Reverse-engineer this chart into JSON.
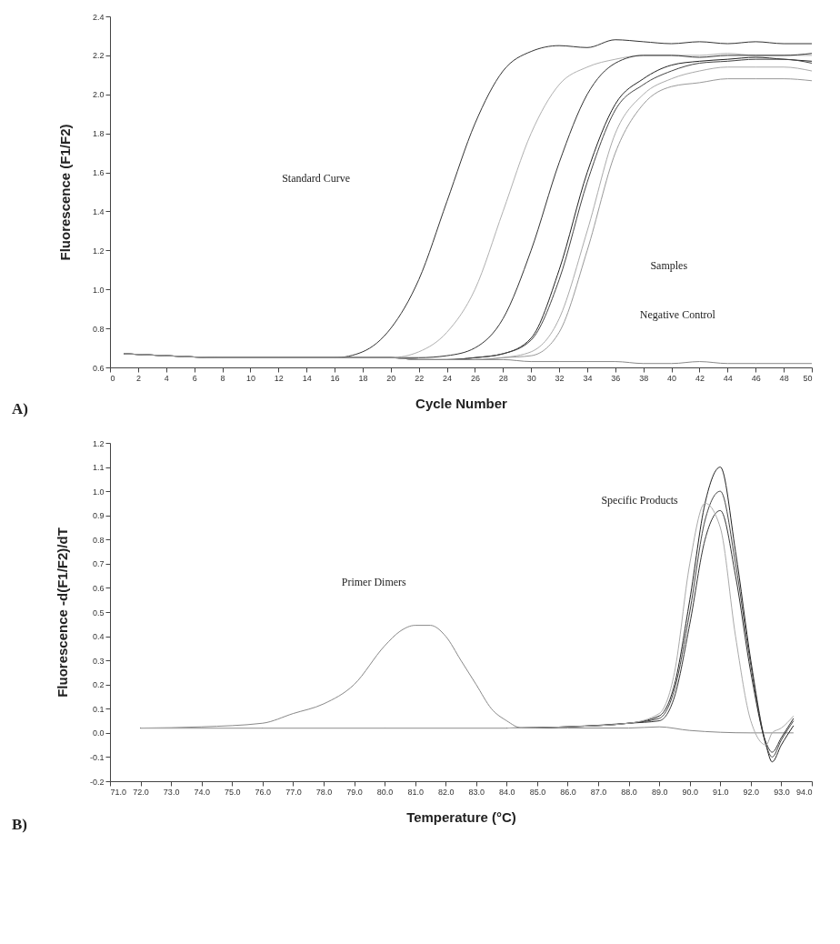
{
  "chart_data": [
    {
      "type": "line",
      "xlabel": "Cycle Number",
      "ylabel": "Fluorescence (F1/F2)",
      "xlim": [
        0,
        50
      ],
      "ylim": [
        0.6,
        2.4
      ],
      "xticks": [
        0,
        2,
        4,
        6,
        8,
        10,
        12,
        14,
        16,
        18,
        20,
        22,
        24,
        26,
        28,
        30,
        32,
        34,
        36,
        38,
        40,
        42,
        44,
        46,
        48,
        50
      ],
      "yticks": [
        0.6,
        0.8,
        {
          "value": 1,
          "label": "1.0"
        },
        1.2,
        1.4,
        1.6,
        1.8,
        {
          "value": 2,
          "label": "2.0"
        },
        2.2,
        2.4
      ],
      "x": [
        1,
        4,
        8,
        12,
        16,
        18,
        20,
        22,
        24,
        26,
        28,
        30,
        32,
        34,
        36,
        38,
        40,
        42,
        44,
        46,
        48,
        50
      ],
      "series": [
        {
          "color": "#333333",
          "values": [
            0.67,
            0.66,
            0.65,
            0.65,
            0.65,
            0.68,
            0.8,
            1.05,
            1.45,
            1.85,
            2.12,
            2.22,
            2.25,
            2.24,
            2.28,
            2.27,
            2.26,
            2.27,
            2.26,
            2.27,
            2.26,
            2.26
          ]
        },
        {
          "color": "#b0b0b0",
          "values": [
            0.67,
            0.66,
            0.65,
            0.65,
            0.65,
            0.65,
            0.65,
            0.68,
            0.78,
            1.0,
            1.4,
            1.8,
            2.05,
            2.14,
            2.18,
            2.2,
            2.2,
            2.2,
            2.21,
            2.2,
            2.2,
            2.2
          ]
        },
        {
          "color": "#333333",
          "values": [
            0.67,
            0.66,
            0.65,
            0.65,
            0.65,
            0.65,
            0.65,
            0.65,
            0.66,
            0.7,
            0.85,
            1.2,
            1.65,
            2.0,
            2.16,
            2.2,
            2.2,
            2.19,
            2.2,
            2.2,
            2.2,
            2.21
          ]
        },
        {
          "color": "#222222",
          "values": [
            0.67,
            0.66,
            0.65,
            0.65,
            0.65,
            0.65,
            0.65,
            0.64,
            0.64,
            0.65,
            0.67,
            0.75,
            1.1,
            1.6,
            1.95,
            2.08,
            2.15,
            2.17,
            2.18,
            2.19,
            2.18,
            2.17
          ]
        },
        {
          "color": "#444444",
          "values": [
            0.67,
            0.66,
            0.65,
            0.65,
            0.65,
            0.65,
            0.65,
            0.64,
            0.64,
            0.65,
            0.67,
            0.74,
            1.05,
            1.55,
            1.92,
            2.05,
            2.12,
            2.16,
            2.17,
            2.18,
            2.18,
            2.16
          ]
        },
        {
          "color": "#aaaaaa",
          "values": [
            0.67,
            0.66,
            0.65,
            0.65,
            0.65,
            0.65,
            0.65,
            0.64,
            0.64,
            0.64,
            0.65,
            0.68,
            0.85,
            1.3,
            1.8,
            2.0,
            2.08,
            2.12,
            2.14,
            2.14,
            2.14,
            2.12
          ]
        },
        {
          "color": "#999999",
          "values": [
            0.67,
            0.66,
            0.65,
            0.65,
            0.65,
            0.65,
            0.65,
            0.64,
            0.64,
            0.64,
            0.65,
            0.66,
            0.78,
            1.2,
            1.7,
            1.95,
            2.04,
            2.06,
            2.08,
            2.08,
            2.08,
            2.07
          ]
        },
        {
          "color": "#888888",
          "values": [
            0.67,
            0.66,
            0.65,
            0.65,
            0.65,
            0.65,
            0.65,
            0.64,
            0.64,
            0.64,
            0.64,
            0.63,
            0.63,
            0.63,
            0.63,
            0.62,
            0.62,
            0.63,
            0.62,
            0.62,
            0.62,
            0.62
          ]
        }
      ],
      "annotations": [
        "Standard Curve",
        "Samples",
        "Negative Control",
        "A)"
      ]
    },
    {
      "type": "line",
      "xlabel": "Temperature (°C)",
      "ylabel": "Fluorescence -d(F1/F2)/dT",
      "xlim": [
        71,
        94
      ],
      "ylim": [
        -0.2,
        1.2
      ],
      "xticks": [
        {
          "value": 71,
          "label": "71.0"
        },
        {
          "value": 72,
          "label": "72.0"
        },
        {
          "value": 73,
          "label": "73.0"
        },
        {
          "value": 74,
          "label": "74.0"
        },
        {
          "value": 75,
          "label": "75.0"
        },
        {
          "value": 76,
          "label": "76.0"
        },
        {
          "value": 77,
          "label": "77.0"
        },
        {
          "value": 78,
          "label": "78.0"
        },
        {
          "value": 79,
          "label": "79.0"
        },
        {
          "value": 80,
          "label": "80.0"
        },
        {
          "value": 81,
          "label": "81.0"
        },
        {
          "value": 82,
          "label": "82.0"
        },
        {
          "value": 83,
          "label": "83.0"
        },
        {
          "value": 84,
          "label": "84.0"
        },
        {
          "value": 85,
          "label": "85.0"
        },
        {
          "value": 86,
          "label": "86.0"
        },
        {
          "value": 87,
          "label": "87.0"
        },
        {
          "value": 88,
          "label": "88.0"
        },
        {
          "value": 89,
          "label": "89.0"
        },
        {
          "value": 90,
          "label": "90.0"
        },
        {
          "value": 91,
          "label": "91.0"
        },
        {
          "value": 92,
          "label": "92.0"
        },
        {
          "value": 93,
          "label": "93.0"
        },
        {
          "value": 94,
          "label": "94.0"
        }
      ],
      "yticks": [
        -0.2,
        -0.1,
        {
          "value": 0,
          "label": "0.0"
        },
        0.1,
        0.2,
        0.3,
        0.4,
        0.5,
        0.6,
        0.7,
        0.8,
        0.9,
        {
          "value": 1,
          "label": "1.0"
        },
        1.1,
        1.2
      ],
      "x": [
        72,
        76,
        80,
        84,
        86,
        88,
        89,
        89.5,
        90,
        90.5,
        91,
        91.5,
        92,
        92.5,
        92.7,
        93,
        93.4
      ],
      "series": [
        {
          "color": "#888888",
          "x": [
            72,
            74,
            76,
            77,
            78,
            79,
            80,
            80.5,
            81,
            81.5,
            82,
            82.5,
            83,
            83.5,
            84,
            84.5,
            86,
            88,
            89,
            90,
            92,
            93.4
          ],
          "values": [
            0.02,
            0.025,
            0.04,
            0.08,
            0.12,
            0.2,
            0.36,
            0.42,
            0.445,
            0.445,
            0.4,
            0.3,
            0.2,
            0.1,
            0.05,
            0.02,
            0.02,
            0.02,
            0.025,
            0.01,
            0.0,
            0.0
          ]
        },
        {
          "color": "#222222",
          "values": [
            0.02,
            0.02,
            0.02,
            0.02,
            0.025,
            0.04,
            0.07,
            0.2,
            0.55,
            0.95,
            1.1,
            0.75,
            0.3,
            -0.05,
            -0.12,
            -0.05,
            0.03
          ]
        },
        {
          "color": "#444444",
          "values": [
            0.02,
            0.02,
            0.02,
            0.02,
            0.025,
            0.04,
            0.06,
            0.18,
            0.5,
            0.88,
            1.0,
            0.7,
            0.28,
            -0.05,
            -0.1,
            -0.03,
            0.05
          ]
        },
        {
          "color": "#333333",
          "values": [
            0.02,
            0.02,
            0.02,
            0.02,
            0.025,
            0.04,
            0.05,
            0.15,
            0.45,
            0.8,
            0.92,
            0.65,
            0.25,
            -0.04,
            -0.08,
            -0.02,
            0.06
          ]
        },
        {
          "color": "#aaaaaa",
          "values": [
            0.02,
            0.02,
            0.02,
            0.02,
            0.025,
            0.04,
            0.08,
            0.25,
            0.7,
            0.95,
            0.85,
            0.4,
            0.05,
            -0.05,
            0.0,
            0.02,
            0.07
          ]
        }
      ],
      "annotations": [
        "Primer Dimers",
        "Specific Products",
        "B)"
      ]
    }
  ]
}
